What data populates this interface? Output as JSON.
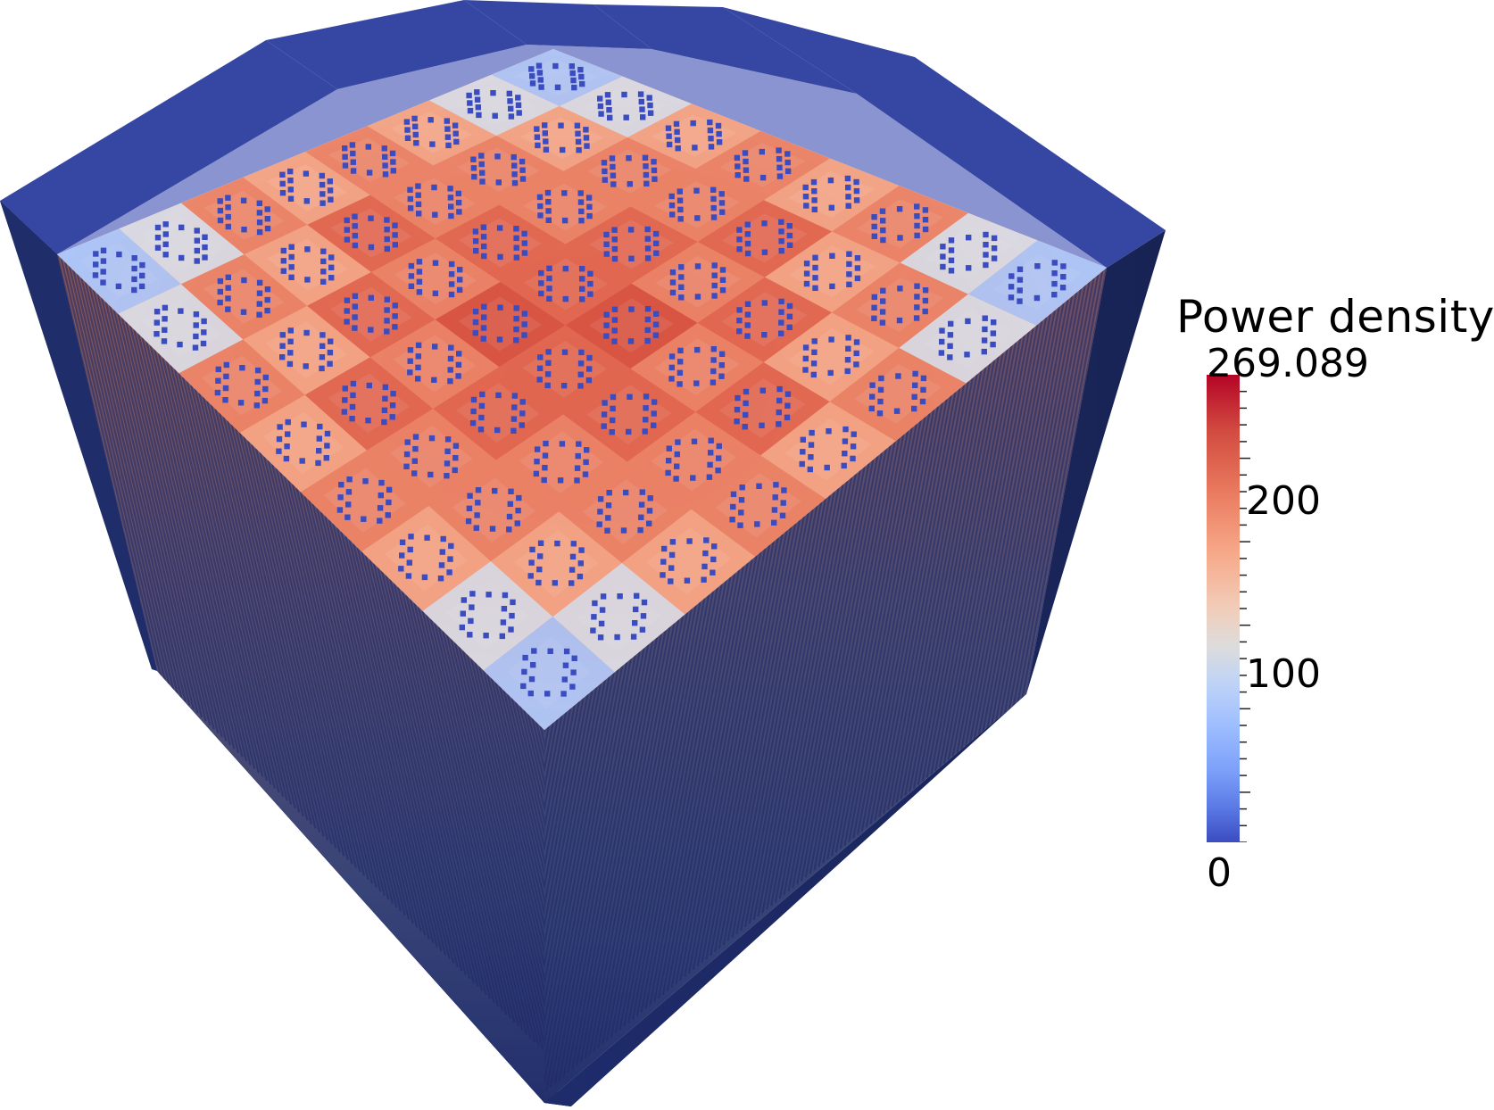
{
  "legend": {
    "title": "Power density",
    "max": "269.089",
    "min": "0",
    "ticks": [
      "200",
      "100"
    ]
  },
  "colors": {
    "background": "#ffffff",
    "frame_top": "#3647a3",
    "frame_side_light": "#2a3a8a",
    "frame_side_dark": "#182354",
    "hot": "#b40426",
    "warm": "#e0654f",
    "mid": "#dddcdc",
    "cool": "#9ebeff",
    "cold": "#3b4cc0"
  }
}
